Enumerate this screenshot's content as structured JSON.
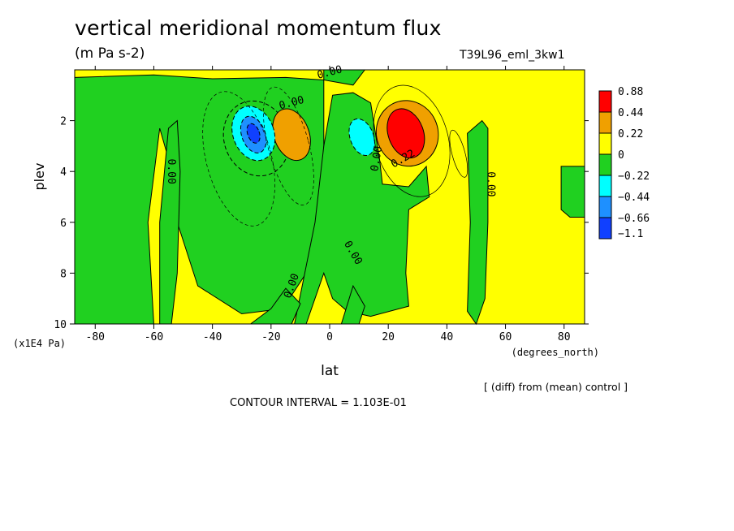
{
  "header": {
    "title": "vertical meridional momentum flux",
    "units": "(m Pa s-2)",
    "run": "T39L96_eml_3kw1"
  },
  "footer": {
    "note": "[ (diff) from (mean) control ]",
    "contour_interval": "CONTOUR INTERVAL = 1.103E-01"
  },
  "colors": {
    "lvl_pos3": "#ff0000",
    "lvl_pos2": "#f0a000",
    "lvl_pos1": "#ffff00",
    "lvl_neg1": "#20d020",
    "lvl_neg2": "#00ffff",
    "lvl_neg3": "#1e90ff",
    "lvl_neg4": "#1040ff"
  },
  "chart_data": {
    "type": "heatmap",
    "xlabel": "lat",
    "xunits": "(degrees_north)",
    "ylabel": "plev",
    "yunits": "(x1E4 Pa)",
    "xlim": [
      -87,
      87
    ],
    "ylim": [
      0,
      10
    ],
    "y_inverted": true,
    "xticks": [
      -80,
      -60,
      -40,
      -20,
      0,
      20,
      40,
      60,
      80
    ],
    "yticks": [
      2,
      4,
      6,
      8,
      10
    ],
    "colorbar_labels": [
      "0.88",
      "0.44",
      "0.22",
      "0",
      "-0.22",
      "-0.44",
      "-0.66",
      "-1.1"
    ],
    "contour_labels": [
      {
        "text": "0.00",
        "lat": -54,
        "plev": 4.0,
        "rot": 90
      },
      {
        "text": "0.00",
        "lat": 55,
        "plev": 4.5,
        "rot": 90
      },
      {
        "text": "0.00",
        "lat": -13,
        "plev": 1.3,
        "rot": -15
      },
      {
        "text": "0.00",
        "lat": 0,
        "plev": 0.1,
        "rot": -15
      },
      {
        "text": "0.00",
        "lat": 8,
        "plev": 7.2,
        "rot": 60
      },
      {
        "text": "0.00",
        "lat": -13,
        "plev": 8.5,
        "rot": -70
      },
      {
        "text": "0.00",
        "lat": 16,
        "plev": 3.5,
        "rot": -80
      },
      {
        "text": "0.22",
        "lat": 25,
        "plev": 3.5,
        "rot": -30
      }
    ],
    "cells": [
      {
        "level": 3,
        "lat": [
          20,
          32
        ],
        "plev": [
          1.5,
          3.5
        ],
        "value": 0.88
      },
      {
        "level": 2,
        "lat": [
          16,
          37
        ],
        "plev": [
          1.2,
          3.8
        ],
        "value": 0.44
      },
      {
        "level": 2,
        "lat": [
          -19,
          -7
        ],
        "plev": [
          1.5,
          3.6
        ],
        "value": 0.22
      },
      {
        "level": -1,
        "lat": [
          -36,
          -14
        ],
        "plev": [
          1.2,
          4.2
        ],
        "value": -0.22
      },
      {
        "level": -2,
        "lat": [
          -33,
          -19
        ],
        "plev": [
          1.4,
          3.6
        ],
        "value": -0.44
      },
      {
        "level": -3,
        "lat": [
          -30,
          -22
        ],
        "plev": [
          1.8,
          3.3
        ],
        "value": -0.66
      },
      {
        "level": -4,
        "lat": [
          -28,
          -24
        ],
        "plev": [
          2.1,
          2.9
        ],
        "value": -1.1
      },
      {
        "level": -2,
        "lat": [
          7,
          15
        ],
        "plev": [
          1.9,
          3.4
        ],
        "value": -0.44
      }
    ]
  }
}
